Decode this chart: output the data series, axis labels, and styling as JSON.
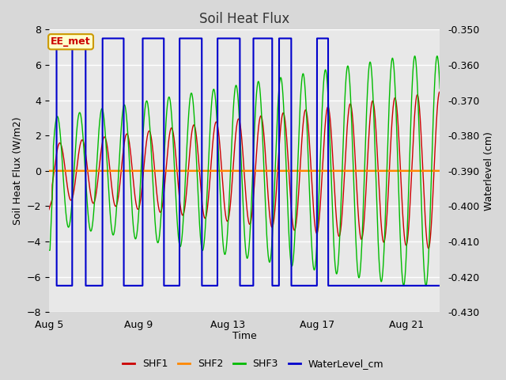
{
  "title": "Soil Heat Flux",
  "xlabel": "Time",
  "ylabel_left": "Soil Heat Flux (W/m2)",
  "ylabel_right": "Waterlevel (cm)",
  "ylim_left": [
    -8,
    8
  ],
  "ylim_right": [
    -0.43,
    -0.35
  ],
  "yticks_left": [
    -8,
    -6,
    -4,
    -2,
    0,
    2,
    4,
    6,
    8
  ],
  "yticks_right": [
    -0.43,
    -0.42,
    -0.41,
    -0.4,
    -0.39,
    -0.38,
    -0.37,
    -0.36,
    -0.35
  ],
  "xtick_positions": [
    0,
    4,
    8,
    12,
    16
  ],
  "xtick_labels": [
    "Aug 5",
    "Aug 9",
    "Aug 13",
    "Aug 17",
    "Aug 21"
  ],
  "xlim": [
    0,
    17.5
  ],
  "annotation_text": "EE_met",
  "bg_color": "#d8d8d8",
  "plot_bg_color": "#e8e8e8",
  "grid_color": "#ffffff",
  "shf1_color": "#cc0000",
  "shf2_color": "#ff8800",
  "shf3_color": "#00bb00",
  "water_color": "#0000cc",
  "legend_labels": [
    "SHF1",
    "SHF2",
    "SHF3",
    "WaterLevel_cm"
  ],
  "water_up": 7.5,
  "water_dn": -6.5,
  "water_final_dn": -6.5,
  "water_switches_up": [
    0.0,
    1.05,
    2.4,
    4.2,
    5.85,
    7.55,
    9.15,
    10.3,
    12.0
  ],
  "water_switches_dn": [
    0.35,
    1.65,
    3.35,
    5.15,
    6.85,
    8.55,
    10.0,
    10.85,
    12.5
  ],
  "water_final_time": 12.5
}
